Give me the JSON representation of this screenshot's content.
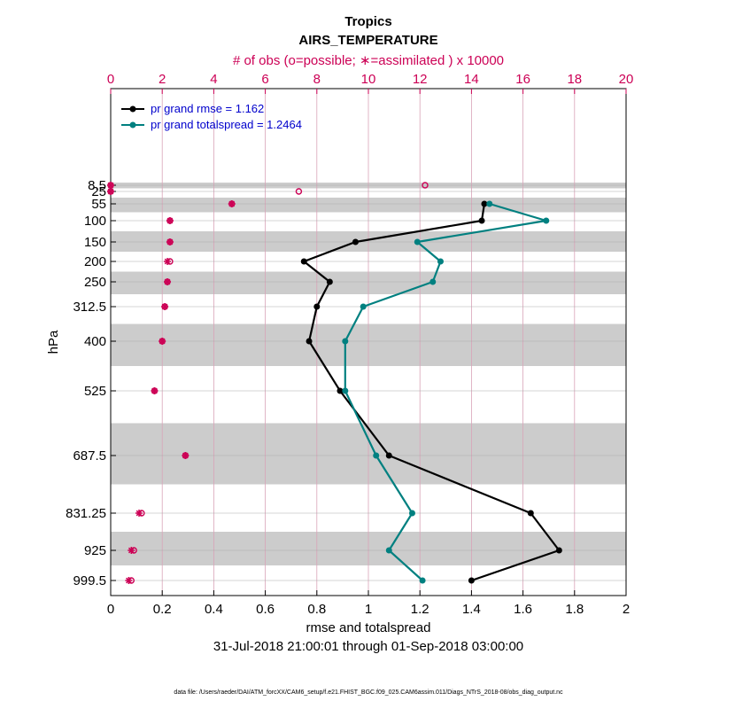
{
  "chart_data": {
    "type": "line",
    "title": "Tropics",
    "subtitle": "AIRS_TEMPERATURE",
    "top_axis_label": "# of obs (o=possible; ∗=assimilated ) x 10000",
    "xlabel": "rmse and totalspread",
    "ylabel": "hPa",
    "date_range": "31-Jul-2018 21:00:01 through 01-Sep-2018 03:00:00",
    "footer": "data file: /Users/raeder/DAI/ATM_forcXX/CAM6_setup/f.e21.FHIST_BGC.f09_025.CAM6assim.011/Diags_NTrS_2018-08/obs_diag_output.nc",
    "xlim": [
      0,
      2
    ],
    "x_ticks": [
      "0",
      "0.2",
      "0.4",
      "0.6",
      "0.8",
      "1",
      "1.2",
      "1.4",
      "1.6",
      "1.8",
      "2"
    ],
    "top_xlim": [
      0,
      20
    ],
    "top_ticks": [
      "0",
      "2",
      "4",
      "6",
      "8",
      "10",
      "12",
      "14",
      "16",
      "18",
      "20"
    ],
    "levels": [
      8.5,
      25,
      55,
      100,
      150,
      200,
      250,
      312.5,
      400,
      525,
      687.5,
      831.25,
      925,
      999.5
    ],
    "level_labels": [
      "8.5",
      "25",
      "55",
      "100",
      "150",
      "200",
      "250",
      "312.5",
      "400",
      "525",
      "687.5",
      "831.25",
      "925",
      "999.5"
    ],
    "series": [
      {
        "name": "pr grand rmse = 1.162",
        "color": "#000000",
        "points": [
          [
            1.45,
            55
          ],
          [
            1.44,
            100
          ],
          [
            0.95,
            150
          ],
          [
            0.75,
            200
          ],
          [
            0.85,
            250
          ],
          [
            0.8,
            312.5
          ],
          [
            0.77,
            400
          ],
          [
            0.89,
            525
          ],
          [
            1.08,
            687.5
          ],
          [
            1.63,
            831.25
          ],
          [
            1.74,
            925
          ],
          [
            1.4,
            999.5
          ]
        ]
      },
      {
        "name": "pr grand totalspread = 1.2464",
        "color": "#008080",
        "points": [
          [
            1.47,
            55
          ],
          [
            1.69,
            100
          ],
          [
            1.19,
            150
          ],
          [
            1.28,
            200
          ],
          [
            1.25,
            250
          ],
          [
            0.98,
            312.5
          ],
          [
            0.91,
            400
          ],
          [
            0.91,
            525
          ],
          [
            1.03,
            687.5
          ],
          [
            1.17,
            831.25
          ],
          [
            1.08,
            925
          ],
          [
            1.21,
            999.5
          ]
        ]
      }
    ],
    "obs_possible": [
      [
        0.0,
        8.5
      ],
      [
        12.2,
        8.5
      ],
      [
        0.0,
        25
      ],
      [
        7.3,
        25
      ],
      [
        4.7,
        55
      ],
      [
        2.3,
        100
      ],
      [
        2.3,
        150
      ],
      [
        2.3,
        200
      ],
      [
        2.2,
        250
      ],
      [
        2.1,
        312.5
      ],
      [
        2.0,
        400
      ],
      [
        1.7,
        525
      ],
      [
        2.9,
        687.5
      ],
      [
        1.2,
        831.25
      ],
      [
        0.9,
        925
      ],
      [
        0.8,
        999.5
      ]
    ],
    "obs_assimilated": [
      [
        0.0,
        8.5
      ],
      [
        0.0,
        25
      ],
      [
        4.7,
        55
      ],
      [
        2.3,
        100
      ],
      [
        2.3,
        150
      ],
      [
        2.2,
        200
      ],
      [
        2.2,
        250
      ],
      [
        2.1,
        312.5
      ],
      [
        2.0,
        400
      ],
      [
        1.7,
        525
      ],
      [
        2.9,
        687.5
      ],
      [
        1.1,
        831.25
      ],
      [
        0.8,
        925
      ],
      [
        0.7,
        999.5
      ]
    ],
    "shaded_level_bands": [
      8.5,
      55,
      150,
      250,
      400,
      687.5,
      925
    ],
    "grid": true,
    "legend_position": "top-left"
  }
}
